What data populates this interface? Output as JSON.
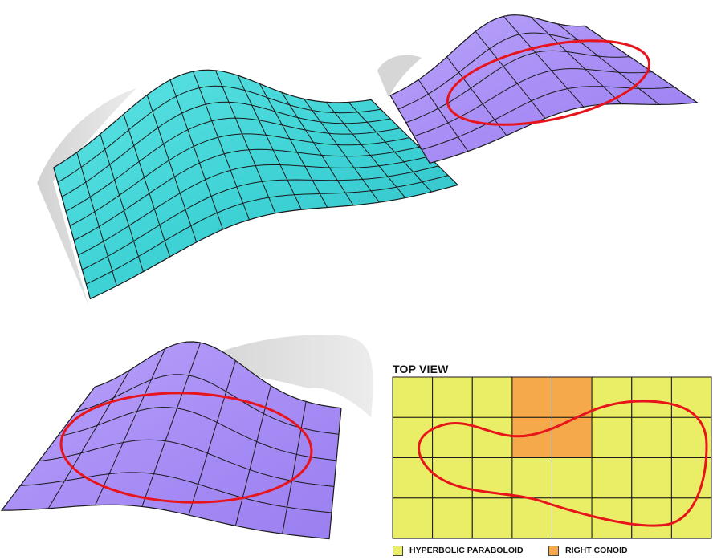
{
  "top_view": {
    "title": "TOP VIEW",
    "grid": {
      "columns": 8,
      "rows": 4
    },
    "highlighted_cells": [
      [
        3,
        0
      ],
      [
        4,
        0
      ],
      [
        3,
        1
      ],
      [
        4,
        1
      ]
    ]
  },
  "legend": [
    {
      "label": "HYPERBOLIC PARABOLOID",
      "color": "#e9ee66"
    },
    {
      "label": "RIGHT CONOID",
      "color": "#f5a94a"
    }
  ],
  "colors": {
    "teal_surface": "#3fd3d6",
    "purple_surface": "#a88ef5",
    "curve": "#e8141b",
    "shadow": "#c8c8c8",
    "grid_line": "#1a1a1a"
  }
}
